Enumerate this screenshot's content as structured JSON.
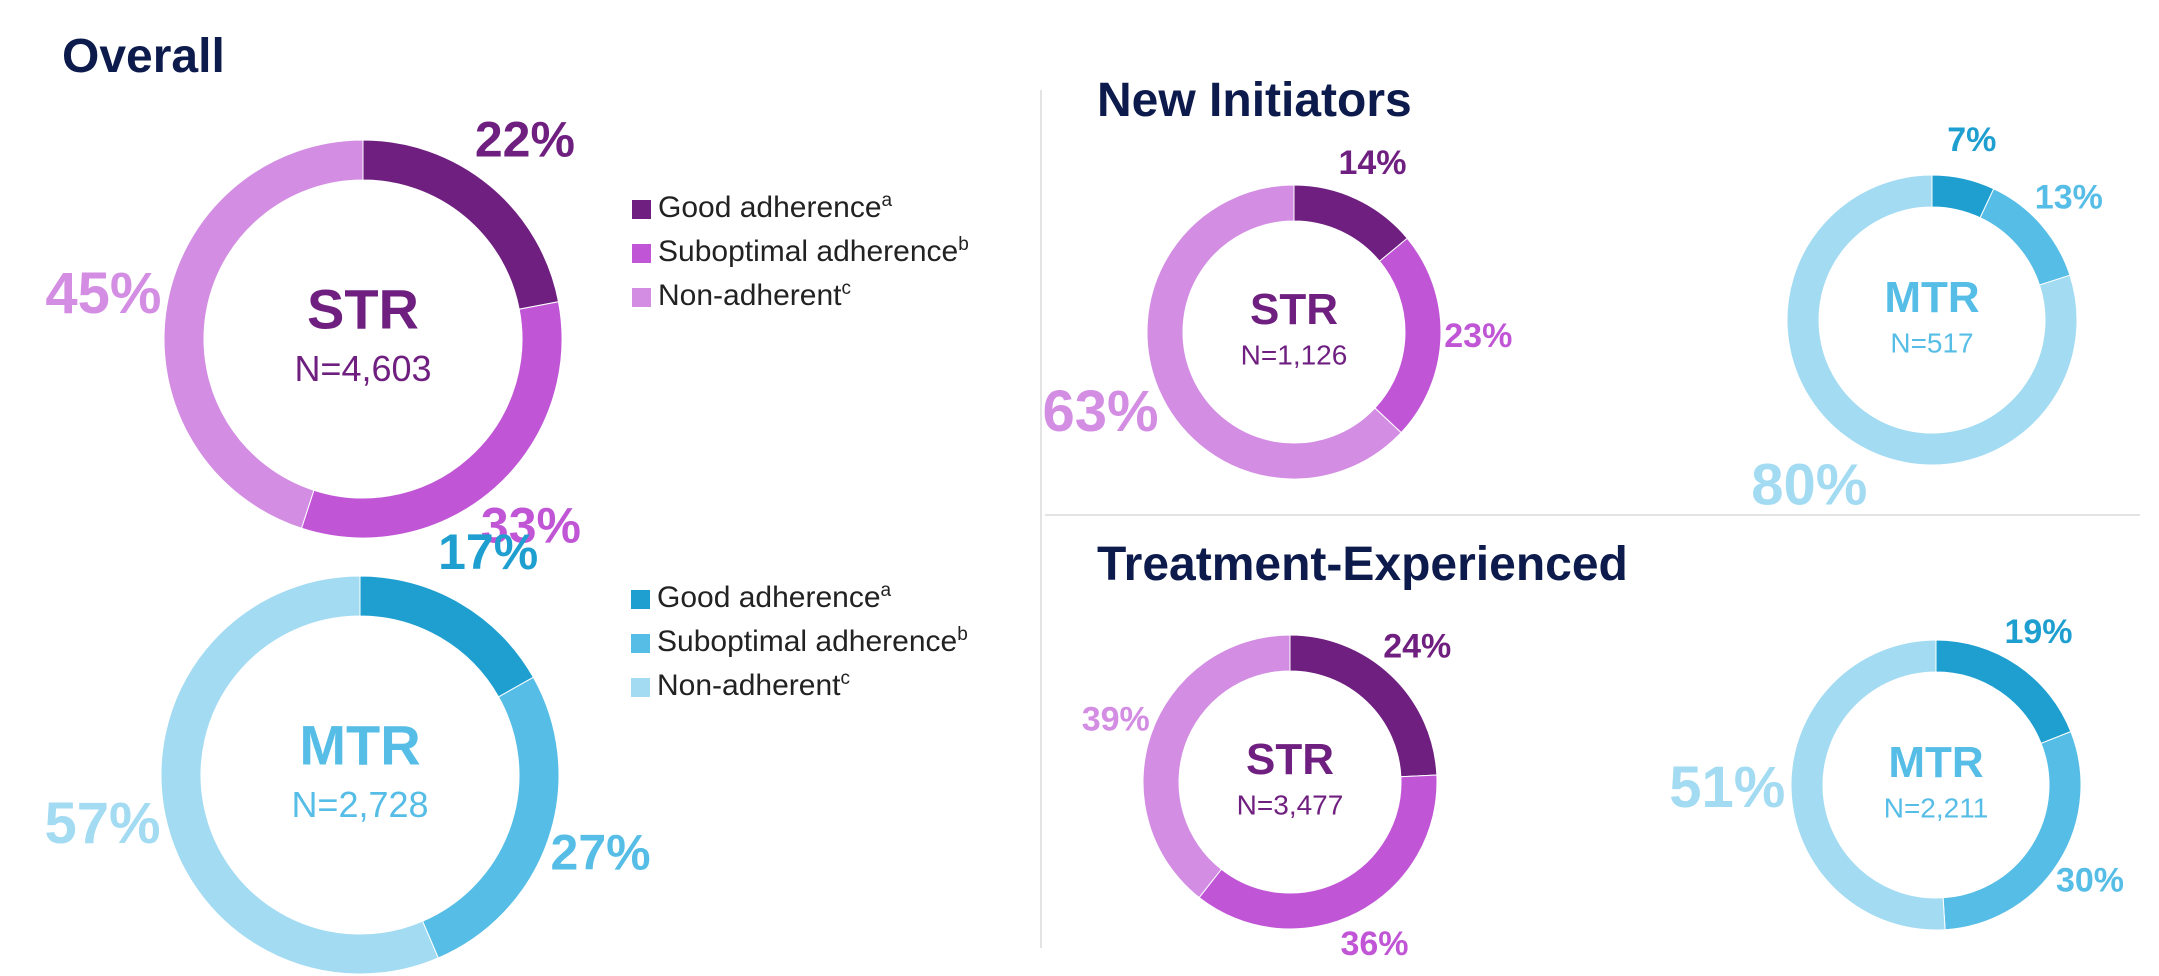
{
  "headings": [
    "Overall",
    "New Initiators",
    "Treatment-Experienced"
  ],
  "chart_data": [
    {
      "type": "pie",
      "center_label": "STR",
      "n_label": "N=4,603",
      "legend": true,
      "categories": [
        "Good adherence",
        "Suboptimal adherence",
        "Non-adherent"
      ],
      "category_notes": [
        "a",
        "b",
        "c"
      ],
      "values": [
        22,
        33,
        45
      ],
      "value_labels": [
        "22%",
        "33%",
        "45%"
      ],
      "colors": [
        "#6f1f7f",
        "#c056d6",
        "#d38de3"
      ],
      "label_color": "#6f1f7f"
    },
    {
      "type": "pie",
      "center_label": "MTR",
      "n_label": "N=2,728",
      "legend": true,
      "categories": [
        "Good adherence",
        "Suboptimal adherence",
        "Non-adherent"
      ],
      "category_notes": [
        "a",
        "b",
        "c"
      ],
      "values": [
        17,
        27,
        57
      ],
      "value_labels": [
        "17%",
        "27%",
        "57%"
      ],
      "colors": [
        "#1e9fd0",
        "#56bde6",
        "#a2dbf2"
      ],
      "label_color": "#56bde6"
    },
    {
      "type": "pie",
      "center_label": "STR",
      "n_label": "N=1,126",
      "legend": false,
      "values": [
        14,
        23,
        63
      ],
      "value_labels": [
        "14%",
        "23%",
        "63%"
      ],
      "colors": [
        "#6f1f7f",
        "#c056d6",
        "#d38de3"
      ],
      "label_color": "#6f1f7f"
    },
    {
      "type": "pie",
      "center_label": "MTR",
      "n_label": "N=517",
      "legend": false,
      "values": [
        7,
        13,
        80
      ],
      "value_labels": [
        "7%",
        "13%",
        "80%"
      ],
      "colors": [
        "#1e9fd0",
        "#56bde6",
        "#a2dbf2"
      ],
      "label_color": "#56bde6"
    },
    {
      "type": "pie",
      "center_label": "STR",
      "n_label": "N=3,477",
      "legend": false,
      "values": [
        24,
        36,
        39
      ],
      "value_labels": [
        "24%",
        "36%",
        "39%"
      ],
      "colors": [
        "#6f1f7f",
        "#c056d6",
        "#d38de3"
      ],
      "label_color": "#6f1f7f"
    },
    {
      "type": "pie",
      "center_label": "MTR",
      "n_label": "N=2,211",
      "legend": false,
      "values": [
        19,
        30,
        51
      ],
      "value_labels": [
        "19%",
        "30%",
        "51%"
      ],
      "colors": [
        "#1e9fd0",
        "#56bde6",
        "#a2dbf2"
      ],
      "label_color": "#56bde6"
    }
  ]
}
